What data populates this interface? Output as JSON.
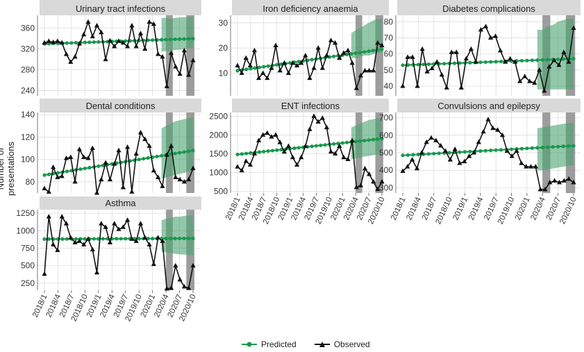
{
  "chart_data": {
    "type": "line",
    "ylabel": "Number of presentations",
    "x_tick_labels": [
      "2018/1",
      "2018/4",
      "2018/7",
      "2018/10",
      "2019/1",
      "2019/4",
      "2019/7",
      "2019/10",
      "2020/1",
      "2020/4",
      "2020/7",
      "2020/10"
    ],
    "legend": {
      "position": "bottom",
      "entries": [
        "Predicted",
        "Observed"
      ]
    },
    "colors": {
      "predicted": "#1a9850",
      "observed": "#111111",
      "band": "#49a36f",
      "shade": "#8c8c8c",
      "strip": "#d9d9d9"
    },
    "panels": [
      {
        "title": "Urinary tract infections",
        "ylim": [
          230,
          385
        ],
        "yticks": [
          240,
          280,
          320,
          360
        ],
        "predicted_start": 330,
        "predicted_end": 340,
        "band_lower": [
          315,
          316,
          317,
          318,
          319,
          320,
          321,
          322
        ],
        "band_upper": [
          380,
          380,
          378,
          380,
          381,
          381,
          382,
          382
        ],
        "observed": [
          332,
          335,
          333,
          335,
          332,
          310,
          295,
          305,
          330,
          348,
          372,
          344,
          365,
          352,
          300,
          336,
          325,
          335,
          332,
          325,
          365,
          325,
          350,
          320,
          372,
          368,
          310,
          305,
          248,
          312,
          286,
          272,
          317,
          270,
          298
        ]
      },
      {
        "title": "Iron deficiency anaemia",
        "ylim": [
          1,
          33
        ],
        "yticks": [
          10,
          20,
          30
        ],
        "predicted_start": 11,
        "predicted_end": 19.5,
        "band_lower": [
          16,
          16,
          16.5,
          17,
          17,
          17.5,
          18,
          18
        ],
        "band_upper": [
          26,
          27,
          28,
          29,
          30,
          31,
          31.5,
          31.5
        ],
        "observed": [
          13,
          10,
          16,
          13,
          19,
          8,
          10,
          8,
          12,
          21,
          11,
          14,
          10,
          14,
          13,
          14,
          17,
          8,
          12,
          20,
          12,
          17,
          23,
          22,
          16,
          18,
          19,
          14,
          4,
          9,
          11,
          11,
          11,
          22,
          21
        ]
      },
      {
        "title": "Diabetes complications",
        "ylim": [
          34,
          84
        ],
        "yticks": [
          40,
          50,
          60,
          70,
          80
        ],
        "predicted_start": 53,
        "predicted_end": 57,
        "band_lower": [
          38,
          38,
          38,
          38,
          38,
          38,
          38,
          38
        ],
        "band_upper": [
          75,
          75,
          77,
          78,
          80,
          81,
          82,
          82
        ],
        "observed": [
          40,
          58,
          58,
          40,
          63,
          49,
          51,
          55,
          47,
          39,
          61,
          61,
          39,
          57,
          63,
          55,
          75,
          77,
          70,
          71,
          62,
          55,
          57,
          55,
          43,
          46,
          43,
          42,
          50,
          37,
          52,
          56,
          53,
          61,
          55,
          76
        ]
      },
      {
        "title": "Dental conditions",
        "ylim": [
          70,
          142
        ],
        "yticks": [
          80,
          100,
          120,
          140
        ],
        "predicted_start": 86,
        "predicted_end": 108,
        "band_lower": [
          83,
          84,
          85,
          86,
          87,
          88,
          89,
          90
        ],
        "band_upper": [
          128,
          130,
          132,
          134,
          135,
          136,
          137,
          138
        ],
        "observed": [
          74,
          71,
          93,
          84,
          85,
          101,
          102,
          80,
          109,
          102,
          101,
          110,
          70,
          82,
          97,
          82,
          96,
          108,
          75,
          111,
          71,
          105,
          124,
          118,
          112,
          90,
          84,
          76,
          104,
          112,
          84,
          82,
          80,
          82,
          92
        ]
      },
      {
        "title": "ENT infections",
        "ylim": [
          450,
          2600
        ],
        "yticks": [
          500,
          1000,
          1500,
          2000,
          2500
        ],
        "predicted_start": 1480,
        "predicted_end": 1900,
        "band_lower": [
          1350,
          1380,
          1400,
          1420,
          1440,
          1460,
          1480,
          1500
        ],
        "band_upper": [
          2200,
          2250,
          2300,
          2350,
          2400,
          2420,
          2450,
          2450
        ],
        "observed": [
          1150,
          1050,
          1300,
          1200,
          1500,
          1850,
          2000,
          2050,
          1950,
          2000,
          1800,
          1550,
          1700,
          1400,
          1200,
          1400,
          1700,
          2150,
          2500,
          2350,
          2450,
          2200,
          1550,
          1500,
          1700,
          1400,
          1350,
          1850,
          600,
          650,
          1100,
          950,
          750,
          550,
          750
        ]
      },
      {
        "title": "Convulsions and epilepsy",
        "ylim": [
          270,
          730
        ],
        "yticks": [
          300,
          400,
          500,
          600,
          700
        ],
        "predicted_start": 485,
        "predicted_end": 540,
        "band_lower": [
          400,
          400,
          405,
          410,
          415,
          420,
          425,
          430
        ],
        "band_upper": [
          640,
          645,
          650,
          655,
          660,
          665,
          670,
          670
        ],
        "observed": [
          395,
          420,
          460,
          410,
          500,
          560,
          585,
          570,
          540,
          510,
          460,
          520,
          440,
          450,
          480,
          500,
          560,
          620,
          690,
          640,
          630,
          600,
          510,
          480,
          510,
          440,
          420,
          420,
          420,
          290,
          290,
          330,
          340,
          330,
          340,
          350,
          330
        ]
      },
      {
        "title": "Asthma",
        "ylim": [
          150,
          1300
        ],
        "yticks": [
          250,
          500,
          750,
          1000,
          1250
        ],
        "predicted_start": 880,
        "predicted_end": 890,
        "band_lower": [
          700,
          690,
          680,
          670,
          660,
          660,
          650,
          650
        ],
        "band_upper": [
          1150,
          1170,
          1180,
          1200,
          1200,
          1210,
          1220,
          1220
        ],
        "observed": [
          380,
          1200,
          800,
          720,
          1200,
          1100,
          900,
          830,
          850,
          800,
          880,
          730,
          400,
          1100,
          1050,
          830,
          1100,
          1020,
          1050,
          1150,
          880,
          850,
          1100,
          900,
          800,
          520,
          900,
          850,
          170,
          180,
          500,
          300,
          200,
          180,
          500
        ]
      }
    ]
  }
}
